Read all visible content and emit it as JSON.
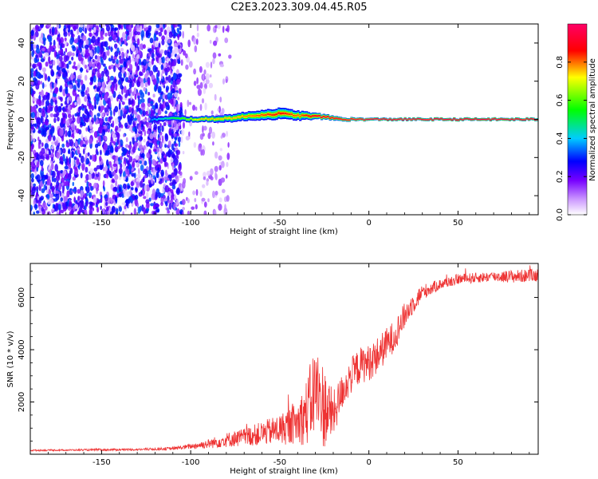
{
  "title": "C2E3.2023.309.04.45.R05",
  "chart_data": [
    {
      "type": "heatmap",
      "xlabel": "Height of straight line (km)",
      "ylabel": "Frequency (Hz)",
      "xlim": [
        -190,
        95
      ],
      "ylim": [
        -50,
        50
      ],
      "x_ticks": [
        -150,
        -100,
        -50,
        0,
        50
      ],
      "x_tick_labels": [
        "-150",
        "-100",
        "-50",
        "0",
        "50"
      ],
      "y_ticks": [
        -40,
        -20,
        0,
        20,
        40
      ],
      "y_tick_labels": [
        "-40",
        "-20",
        "0",
        "20",
        "40"
      ],
      "grid": false,
      "colorbar": {
        "label": "Normalized spectral amplitude",
        "range": [
          0,
          1
        ],
        "ticks": [
          0.0,
          0.2,
          0.4,
          0.6,
          0.8
        ],
        "tick_labels": [
          "0.0",
          "0.2",
          "0.4",
          "0.6",
          "0.8"
        ],
        "colors": [
          "#ffffff",
          "#7700ff",
          "#0000ff",
          "#00ccff",
          "#00ff00",
          "#ffff00",
          "#ff0000",
          "#ff0066"
        ]
      },
      "regions": [
        {
          "name": "noise",
          "x_range": [
            -190,
            -105
          ],
          "freq_range": [
            -50,
            50
          ],
          "amplitude": 0.15
        },
        {
          "name": "sparse-noise",
          "x_range": [
            -105,
            -78
          ],
          "freq_range": [
            -50,
            50
          ],
          "amplitude": 0.05
        }
      ],
      "ridge": [
        {
          "x": -122,
          "freq": 0.0,
          "width": 4,
          "amplitude": 0.35
        },
        {
          "x": -110,
          "freq": 0.5,
          "width": 3,
          "amplitude": 0.5
        },
        {
          "x": -95,
          "freq": 0.0,
          "width": 3,
          "amplitude": 0.7
        },
        {
          "x": -80,
          "freq": 0.5,
          "width": 4,
          "amplitude": 0.7
        },
        {
          "x": -65,
          "freq": 2.0,
          "width": 5,
          "amplitude": 0.75
        },
        {
          "x": -50,
          "freq": 3.0,
          "width": 6,
          "amplitude": 0.8
        },
        {
          "x": -40,
          "freq": 2.0,
          "width": 5,
          "amplitude": 0.75
        },
        {
          "x": -28,
          "freq": 1.5,
          "width": 3,
          "amplitude": 0.9
        },
        {
          "x": -15,
          "freq": 0.0,
          "width": 2,
          "amplitude": 0.9
        },
        {
          "x": 0,
          "freq": 0.0,
          "width": 1.5,
          "amplitude": 0.95
        },
        {
          "x": 50,
          "freq": 0.0,
          "width": 1.5,
          "amplitude": 1.0
        },
        {
          "x": 95,
          "freq": 0.0,
          "width": 1.5,
          "amplitude": 1.0
        }
      ]
    },
    {
      "type": "line",
      "xlabel": "Height of straight line (km)",
      "ylabel": "SNR (10 * v/v)",
      "xlim": [
        -190,
        95
      ],
      "ylim": [
        0,
        7300
      ],
      "x_ticks": [
        -150,
        -100,
        -50,
        0,
        50
      ],
      "x_tick_labels": [
        "-150",
        "-100",
        "-50",
        "0",
        "50"
      ],
      "y_ticks": [
        2000,
        4000,
        6000
      ],
      "y_tick_labels": [
        "2000",
        "4000",
        "6000"
      ],
      "grid": false,
      "series": [
        {
          "color": "#ee3333",
          "x": [
            -190,
            -170,
            -150,
            -130,
            -110,
            -100,
            -90,
            -80,
            -70,
            -60,
            -50,
            -40,
            -35,
            -30,
            -25,
            -20,
            -15,
            -10,
            -5,
            0,
            5,
            10,
            15,
            20,
            25,
            30,
            40,
            50,
            60,
            70,
            80,
            95
          ],
          "values": [
            150,
            160,
            170,
            180,
            220,
            300,
            400,
            550,
            650,
            800,
            950,
            1200,
            1600,
            2500,
            1800,
            1500,
            2400,
            3000,
            3400,
            3500,
            3800,
            4200,
            4600,
            5300,
            5800,
            6200,
            6500,
            6700,
            6750,
            6800,
            6800,
            6850
          ],
          "noise": [
            30,
            30,
            40,
            40,
            60,
            100,
            180,
            280,
            350,
            450,
            600,
            800,
            1300,
            1800,
            1600,
            900,
            700,
            700,
            700,
            700,
            700,
            650,
            600,
            500,
            400,
            300,
            200,
            200,
            200,
            200,
            250,
            250
          ]
        }
      ]
    }
  ]
}
